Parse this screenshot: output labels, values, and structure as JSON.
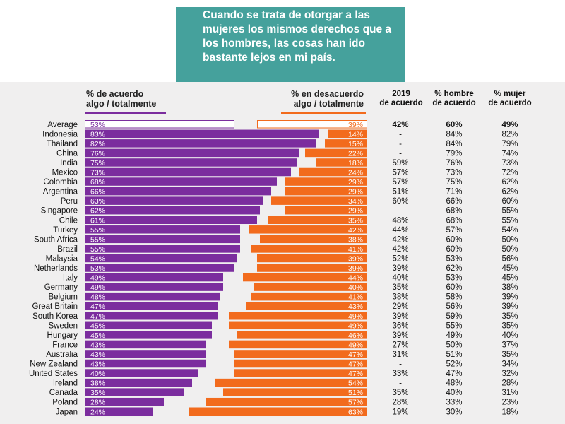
{
  "headline": "Cuando se trata de otorgar a las mujeres los mismos derechos que a los hombres, las cosas han ido bastante lejos en mi país.",
  "colors": {
    "agree": "#7b2d9e",
    "disagree": "#f26b1d",
    "headline_bg": "#45a19c"
  },
  "headers": {
    "agree_1": "% de acuerdo",
    "agree_2": "algo / totalmente",
    "disagree_1": "% en desacuerdo",
    "disagree_2": "algo / totalmente",
    "y2019_1": "2019",
    "y2019_2": "de acuerdo",
    "men_1": "% hombre",
    "men_2": "de acuerdo",
    "women_1": "% mujer",
    "women_2": "de acuerdo"
  },
  "chart_data": {
    "type": "bar",
    "categories": [
      "Average",
      "Indonesia",
      "Thailand",
      "China",
      "India",
      "Mexico",
      "Colombia",
      "Argentina",
      "Peru",
      "Singapore",
      "Chile",
      "Turkey",
      "South Africa",
      "Brazil",
      "Malaysia",
      "Netherlands",
      "Italy",
      "Germany",
      "Belgium",
      "Great Britain",
      "South Korea",
      "Sweden",
      "Hungary",
      "France",
      "Australia",
      "New Zealand",
      "United States",
      "Ireland",
      "Canada",
      "Poland",
      "Japan"
    ],
    "series": [
      {
        "name": "% de acuerdo algo / totalmente",
        "values": [
          53,
          83,
          82,
          76,
          75,
          73,
          68,
          66,
          63,
          62,
          61,
          55,
          55,
          55,
          54,
          53,
          49,
          49,
          48,
          47,
          47,
          45,
          45,
          43,
          43,
          43,
          40,
          38,
          35,
          28,
          24
        ]
      },
      {
        "name": "% en desacuerdo algo / totalmente",
        "values": [
          39,
          14,
          15,
          22,
          18,
          24,
          29,
          29,
          34,
          29,
          35,
          42,
          38,
          41,
          39,
          39,
          44,
          40,
          41,
          43,
          49,
          49,
          46,
          49,
          47,
          47,
          47,
          54,
          51,
          57,
          63
        ]
      }
    ],
    "table": {
      "y2019": [
        "42%",
        "-",
        "-",
        "-",
        "59%",
        "57%",
        "57%",
        "51%",
        "60%",
        "-",
        "48%",
        "44%",
        "42%",
        "42%",
        "52%",
        "39%",
        "40%",
        "35%",
        "38%",
        "29%",
        "39%",
        "36%",
        "39%",
        "27%",
        "31%",
        "-",
        "33%",
        "-",
        "35%",
        "28%",
        "19%"
      ],
      "men": [
        "60%",
        "84%",
        "84%",
        "79%",
        "76%",
        "73%",
        "75%",
        "71%",
        "66%",
        "68%",
        "68%",
        "57%",
        "60%",
        "60%",
        "53%",
        "62%",
        "53%",
        "60%",
        "58%",
        "56%",
        "59%",
        "55%",
        "49%",
        "50%",
        "51%",
        "52%",
        "47%",
        "48%",
        "40%",
        "33%",
        "30%"
      ],
      "women": [
        "49%",
        "82%",
        "79%",
        "74%",
        "73%",
        "72%",
        "62%",
        "62%",
        "60%",
        "55%",
        "55%",
        "54%",
        "50%",
        "50%",
        "56%",
        "45%",
        "45%",
        "38%",
        "39%",
        "39%",
        "35%",
        "35%",
        "40%",
        "37%",
        "35%",
        "34%",
        "32%",
        "28%",
        "31%",
        "23%",
        "18%"
      ]
    },
    "axis_max_percent": 100,
    "first_row_outlined": true
  }
}
